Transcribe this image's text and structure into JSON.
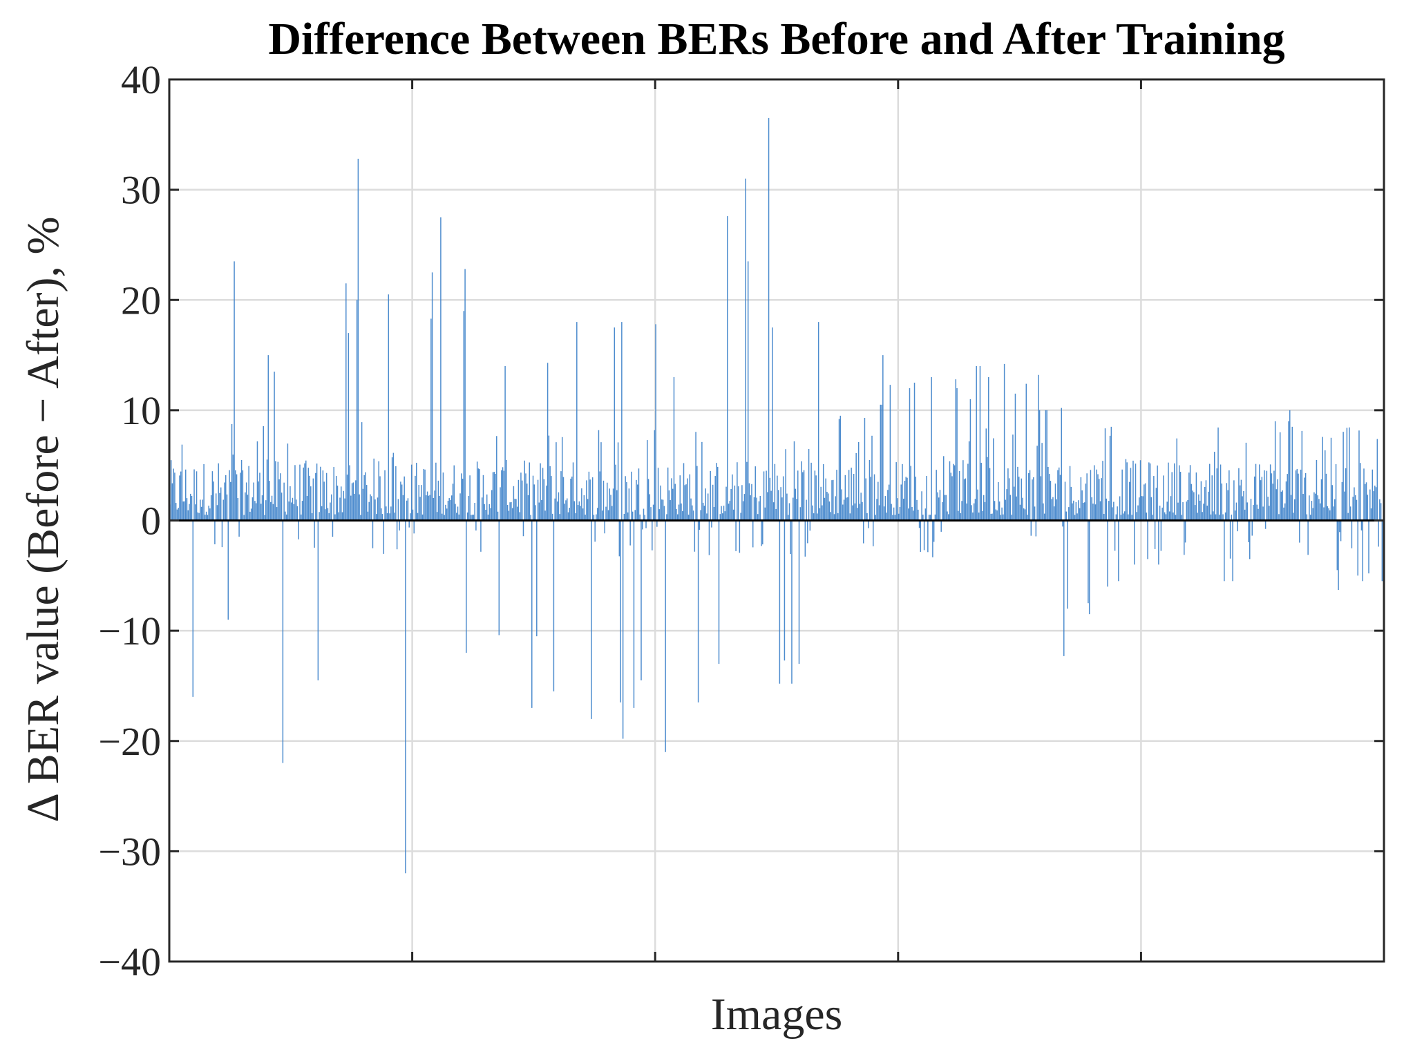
{
  "chart_data": {
    "type": "bar",
    "title": "Difference Between BERs Before and After Training",
    "xlabel": "Images",
    "ylabel": "Δ BER value (Before − After), %",
    "ylim": [
      -40,
      40
    ],
    "yticks": [
      -40,
      -30,
      -20,
      -10,
      0,
      10,
      20,
      30,
      40
    ],
    "ytick_labels": [
      "−40",
      "−30",
      "−20",
      "−10",
      "0",
      "10",
      "20",
      "30",
      "40"
    ],
    "xlim": [
      0,
      1000
    ],
    "xticks": [
      0,
      200,
      400,
      600,
      800,
      1000
    ],
    "xtick_labels": [
      "",
      "",
      "",
      "",
      "",
      ""
    ],
    "grid": true,
    "bar_color": "#3a7fc9",
    "zero_line": true,
    "series": [
      {
        "x": [
          19,
          48,
          53,
          81,
          86,
          93,
          122,
          145,
          147,
          154,
          155,
          180,
          194,
          215,
          216,
          223,
          242,
          243,
          244,
          271,
          276,
          298,
          302,
          311,
          316,
          335,
          347,
          366,
          371,
          372,
          373,
          382,
          388,
          400,
          408,
          415,
          435,
          452,
          459,
          474,
          476,
          493,
          496,
          502,
          506,
          512,
          518,
          534,
          551,
          552,
          572,
          585,
          586,
          587,
          593,
          609,
          613,
          627,
          647,
          648,
          659,
          664,
          667,
          674,
          687,
          696,
          705,
          715,
          716,
          716,
          721,
          722,
          734,
          736,
          739,
          756,
          757,
          772,
          781,
          794,
          805,
          814,
          868,
          875,
          889,
          910,
          914,
          921,
          922,
          924,
          956,
          961,
          962,
          978,
          982,
          987,
          998,
          1000
        ],
        "values": [
          -16,
          -9,
          23.5,
          15,
          13.5,
          -22,
          -14.5,
          21.5,
          17,
          20,
          32.8,
          20.5,
          -32,
          18.3,
          22.5,
          27.5,
          19,
          22.8,
          -12,
          -10.4,
          14,
          -17,
          -10.5,
          14.3,
          -15.5,
          18,
          -18,
          17.5,
          -16.5,
          18,
          -19.8,
          -17,
          -14.5,
          17.8,
          -21,
          13,
          -16.5,
          -13,
          27.6,
          31,
          23.5,
          36.5,
          17.5,
          -14.8,
          -12.7,
          -14.8,
          -13,
          18,
          9.2,
          9.5,
          9.3,
          10.5,
          10.5,
          15,
          12.3,
          12,
          12.5,
          13,
          12.8,
          12,
          11,
          14,
          14,
          13,
          14.2,
          11.5,
          12.4,
          13.2,
          10,
          10,
          10,
          10,
          10.2,
          -12.3,
          -8,
          -7.5,
          -8.5,
          -6,
          -5.5,
          -4,
          -3.5,
          -4,
          -5.5,
          -5.5,
          -3.5,
          9,
          8,
          9,
          10,
          8.5,
          7.5,
          -4.5,
          -6.3,
          -5,
          -5.5,
          -4.8,
          -5.5,
          -5.5
        ],
        "sample_count": 1000,
        "dense_noise": {
          "positive_typical": [
            0.5,
            5.5
          ],
          "positive_occasional_max": 9,
          "negative_occasional": [
            -0.5,
            -3.5
          ]
        }
      }
    ]
  }
}
